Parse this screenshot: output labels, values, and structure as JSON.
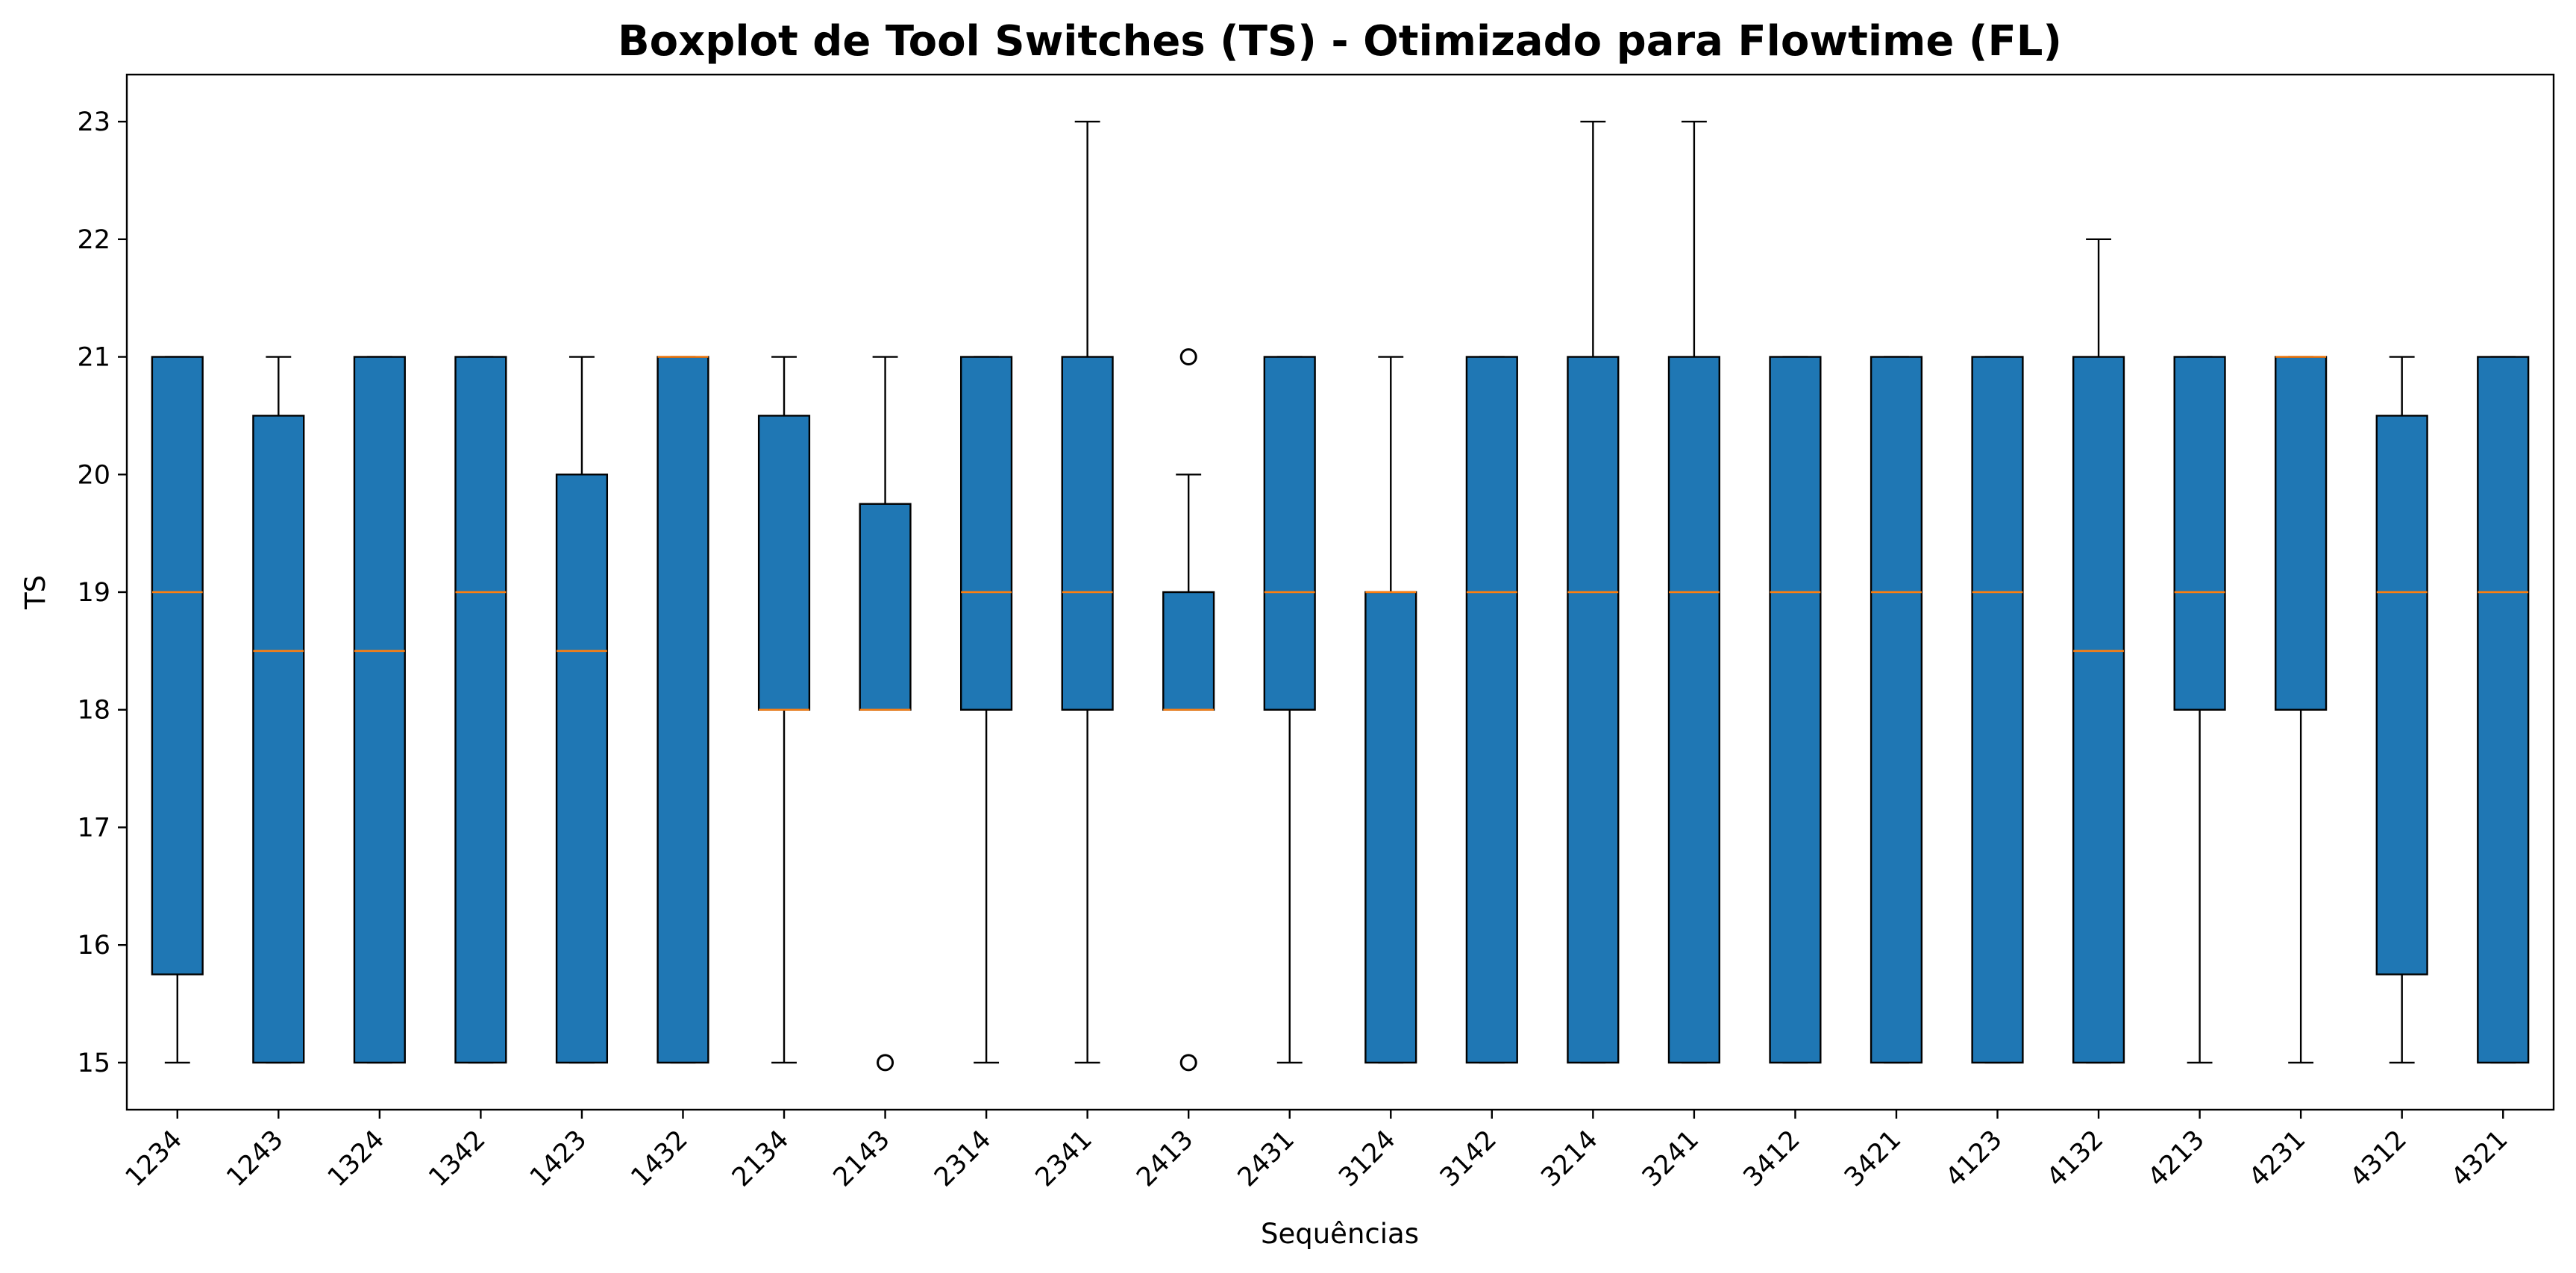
{
  "chart_data": {
    "type": "boxplot",
    "title": "Boxplot de Tool Switches (TS) - Otimizado para Flowtime (FL)",
    "xlabel": "Sequências",
    "ylabel": "TS",
    "ylim": [
      14.6,
      23.4
    ],
    "yticks": [
      15,
      16,
      17,
      18,
      19,
      20,
      21,
      22,
      23
    ],
    "grid": false,
    "colors": {
      "box": "#1f77b4",
      "median": "#ff7f0e",
      "edge": "#000000"
    },
    "categories": [
      "1234",
      "1243",
      "1324",
      "1342",
      "1423",
      "1432",
      "2134",
      "2143",
      "2314",
      "2341",
      "2413",
      "2431",
      "3124",
      "3142",
      "3214",
      "3241",
      "3412",
      "3421",
      "4123",
      "4132",
      "4213",
      "4231",
      "4312",
      "4321"
    ],
    "boxes": [
      {
        "whislo": 15,
        "q1": 15.75,
        "med": 19,
        "q3": 21,
        "whishi": 21,
        "fliers": []
      },
      {
        "whislo": 15,
        "q1": 15,
        "med": 18.5,
        "q3": 20.5,
        "whishi": 21,
        "fliers": []
      },
      {
        "whislo": 15,
        "q1": 15,
        "med": 18.5,
        "q3": 21,
        "whishi": 21,
        "fliers": []
      },
      {
        "whislo": 15,
        "q1": 15,
        "med": 19,
        "q3": 21,
        "whishi": 21,
        "fliers": []
      },
      {
        "whislo": 15,
        "q1": 15,
        "med": 18.5,
        "q3": 20,
        "whishi": 21,
        "fliers": []
      },
      {
        "whislo": 15,
        "q1": 15,
        "med": 21,
        "q3": 21,
        "whishi": 21,
        "fliers": []
      },
      {
        "whislo": 15,
        "q1": 18,
        "med": 18,
        "q3": 20.5,
        "whishi": 21,
        "fliers": []
      },
      {
        "whislo": 18,
        "q1": 18,
        "med": 18,
        "q3": 19.75,
        "whishi": 21,
        "fliers": [
          15
        ]
      },
      {
        "whislo": 15,
        "q1": 18,
        "med": 19,
        "q3": 21,
        "whishi": 21,
        "fliers": []
      },
      {
        "whislo": 15,
        "q1": 18,
        "med": 19,
        "q3": 21,
        "whishi": 23,
        "fliers": []
      },
      {
        "whislo": 18,
        "q1": 18,
        "med": 18,
        "q3": 19,
        "whishi": 20,
        "fliers": [
          21,
          15
        ]
      },
      {
        "whislo": 15,
        "q1": 18,
        "med": 19,
        "q3": 21,
        "whishi": 21,
        "fliers": []
      },
      {
        "whislo": 15,
        "q1": 15,
        "med": 19,
        "q3": 19,
        "whishi": 21,
        "fliers": []
      },
      {
        "whislo": 15,
        "q1": 15,
        "med": 19,
        "q3": 21,
        "whishi": 21,
        "fliers": []
      },
      {
        "whislo": 15,
        "q1": 15,
        "med": 19,
        "q3": 21,
        "whishi": 23,
        "fliers": []
      },
      {
        "whislo": 15,
        "q1": 15,
        "med": 19,
        "q3": 21,
        "whishi": 23,
        "fliers": []
      },
      {
        "whislo": 15,
        "q1": 15,
        "med": 19,
        "q3": 21,
        "whishi": 21,
        "fliers": []
      },
      {
        "whislo": 15,
        "q1": 15,
        "med": 19,
        "q3": 21,
        "whishi": 21,
        "fliers": []
      },
      {
        "whislo": 15,
        "q1": 15,
        "med": 19,
        "q3": 21,
        "whishi": 21,
        "fliers": []
      },
      {
        "whislo": 15,
        "q1": 15,
        "med": 18.5,
        "q3": 21,
        "whishi": 22,
        "fliers": []
      },
      {
        "whislo": 15,
        "q1": 18,
        "med": 19,
        "q3": 21,
        "whishi": 21,
        "fliers": []
      },
      {
        "whislo": 15,
        "q1": 18,
        "med": 21,
        "q3": 21,
        "whishi": 21,
        "fliers": []
      },
      {
        "whislo": 15,
        "q1": 15.75,
        "med": 19,
        "q3": 20.5,
        "whishi": 21,
        "fliers": []
      },
      {
        "whislo": 15,
        "q1": 15,
        "med": 19,
        "q3": 21,
        "whishi": 21,
        "fliers": []
      }
    ]
  }
}
